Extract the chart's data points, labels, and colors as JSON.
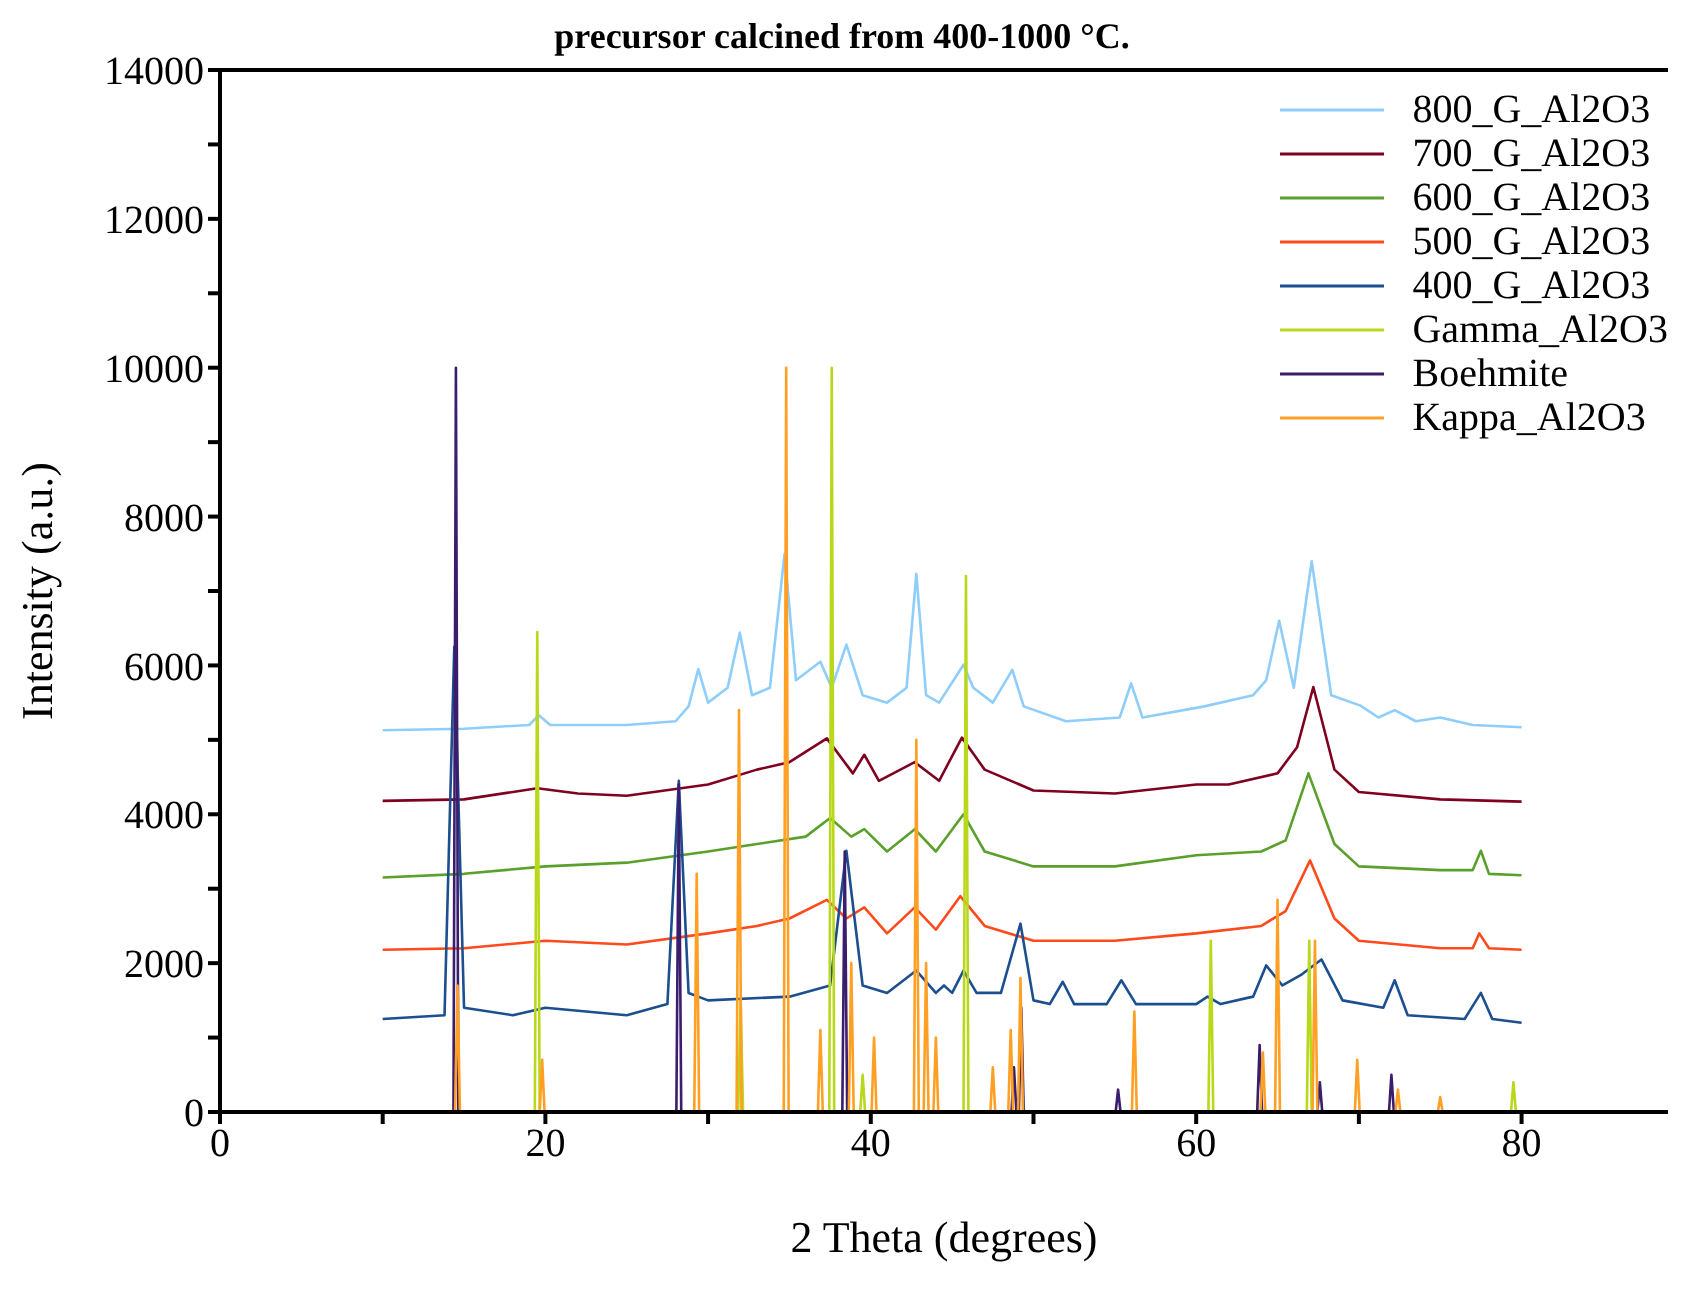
{
  "chart_data": {
    "type": "line",
    "title": "precursor calcined from 400-1000 °C.",
    "xlabel": "2 Theta (degrees)",
    "ylabel": "Intensity (a.u.)",
    "xlim": [
      0,
      89
    ],
    "xticks": [
      0,
      {
        "value": 10,
        "label": null
      },
      20,
      {
        "value": 30,
        "label": null
      },
      40,
      {
        "value": 50,
        "label": null
      },
      60,
      {
        "value": 70,
        "label": null
      },
      80
    ],
    "ylim": [
      0,
      14000
    ],
    "yticks": [
      0,
      {
        "value": 1000,
        "label": null
      },
      2000,
      {
        "value": 3000,
        "label": null
      },
      4000,
      {
        "value": 5000,
        "label": null
      },
      6000,
      {
        "value": 7000,
        "label": null
      },
      8000,
      {
        "value": 9000,
        "label": null
      },
      10000,
      {
        "value": 11000,
        "label": null
      },
      12000,
      {
        "value": 13000,
        "label": null
      },
      14000
    ],
    "grid": false,
    "legend": "top right",
    "marker": "none",
    "line_style": "solid",
    "series": [
      {
        "name": "800_G_Al2O3",
        "color": "#8fcdfb",
        "x": [
          10,
          15,
          19,
          19.6,
          20.3,
          25,
          28,
          28.8,
          29.4,
          30,
          31.2,
          31.95,
          32.7,
          33.8,
          34.7,
          35.4,
          36.9,
          37.6,
          38.5,
          39.5,
          41,
          42.2,
          42.8,
          43.4,
          44.2,
          45.7,
          46.3,
          47.5,
          48.7,
          49.4,
          52,
          55.3,
          56,
          56.7,
          60.5,
          63.5,
          64.3,
          65.1,
          66,
          67.1,
          68.3,
          70.1,
          71.2,
          72.2,
          73.5,
          75,
          77,
          80
        ],
        "values": [
          5130,
          5150,
          5200,
          5330,
          5200,
          5200,
          5250,
          5450,
          5950,
          5500,
          5700,
          6440,
          5600,
          5700,
          7500,
          5800,
          6050,
          5700,
          6280,
          5600,
          5500,
          5700,
          7230,
          5600,
          5500,
          6010,
          5700,
          5500,
          5940,
          5450,
          5250,
          5300,
          5760,
          5300,
          5450,
          5600,
          5800,
          6600,
          5700,
          7400,
          5600,
          5460,
          5300,
          5400,
          5250,
          5300,
          5200,
          5170
        ]
      },
      {
        "name": "700_G_Al2O3",
        "color": "#800020",
        "x": [
          10,
          15,
          19.5,
          22,
          25,
          30,
          33,
          35,
          37.3,
          38.9,
          39.6,
          40.5,
          42.7,
          44.2,
          45.6,
          47,
          50,
          55,
          60,
          62,
          65,
          66.2,
          67.2,
          68.5,
          70,
          75,
          80
        ],
        "values": [
          4180,
          4200,
          4350,
          4280,
          4250,
          4400,
          4600,
          4700,
          5020,
          4550,
          4800,
          4450,
          4700,
          4450,
          5030,
          4600,
          4320,
          4280,
          4400,
          4400,
          4550,
          4900,
          5710,
          4600,
          4300,
          4200,
          4170
        ]
      },
      {
        "name": "600_G_Al2O3",
        "color": "#5aa02c",
        "x": [
          10,
          15,
          20,
          25,
          30,
          33,
          36,
          37.5,
          38.8,
          39.6,
          41,
          42.7,
          44,
          45.7,
          47,
          50,
          55,
          60,
          64,
          65.5,
          66.9,
          68.5,
          70,
          75,
          77,
          77.5,
          78,
          80
        ],
        "values": [
          3150,
          3200,
          3300,
          3350,
          3500,
          3600,
          3700,
          3950,
          3700,
          3800,
          3500,
          3800,
          3500,
          4000,
          3500,
          3300,
          3300,
          3450,
          3500,
          3650,
          4550,
          3600,
          3300,
          3250,
          3250,
          3510,
          3200,
          3180
        ]
      },
      {
        "name": "500_G_Al2O3",
        "color": "#ff4a1c",
        "x": [
          10,
          15,
          20,
          25,
          30,
          33,
          35,
          37.3,
          38.5,
          39.6,
          41,
          42.7,
          44,
          45.5,
          47,
          50,
          55,
          60,
          64,
          65.5,
          67,
          68.5,
          70,
          75,
          77,
          77.4,
          78,
          80
        ],
        "values": [
          2180,
          2200,
          2300,
          2250,
          2400,
          2500,
          2600,
          2850,
          2600,
          2750,
          2400,
          2750,
          2450,
          2900,
          2500,
          2300,
          2300,
          2400,
          2500,
          2700,
          3380,
          2600,
          2300,
          2200,
          2200,
          2400,
          2200,
          2180
        ]
      },
      {
        "name": "400_G_Al2O3",
        "color": "#1c4f8f",
        "x": [
          10,
          13.8,
          14.4,
          15,
          18,
          20,
          25,
          27.5,
          28.2,
          28.8,
          30,
          35,
          37.5,
          38.5,
          39.5,
          41,
          42.8,
          44,
          44.5,
          45,
          45.7,
          46.5,
          48,
          49.2,
          50,
          51,
          51.8,
          52.5,
          54.5,
          55.4,
          56.3,
          60,
          60.7,
          61.5,
          63.5,
          64.3,
          65.3,
          66.5,
          67.7,
          69,
          71.5,
          72.2,
          73,
          76.5,
          77.5,
          78.2,
          80
        ],
        "values": [
          1250,
          1300,
          6250,
          1400,
          1300,
          1400,
          1300,
          1450,
          4450,
          1600,
          1500,
          1550,
          1700,
          3510,
          1700,
          1600,
          1900,
          1600,
          1700,
          1600,
          1900,
          1600,
          1600,
          2530,
          1500,
          1450,
          1750,
          1450,
          1450,
          1770,
          1450,
          1450,
          1550,
          1450,
          1550,
          1970,
          1700,
          1850,
          2050,
          1500,
          1400,
          1770,
          1300,
          1250,
          1600,
          1250,
          1200
        ]
      },
      {
        "name": "Gamma_Al2O3",
        "color": "#b9d81a",
        "x": [
          19.35,
          19.5,
          19.65,
          31.85,
          32,
          32.15,
          37.45,
          37.6,
          37.75,
          39.35,
          39.5,
          39.65,
          45.7,
          45.85,
          46,
          60.75,
          60.9,
          61.05,
          66.8,
          66.95,
          67.1,
          79.35,
          79.5,
          79.65
        ],
        "values": [
          0,
          6450,
          0,
          0,
          1500,
          0,
          0,
          10000,
          0,
          0,
          500,
          0,
          0,
          7200,
          0,
          0,
          2300,
          0,
          0,
          2300,
          0,
          0,
          400,
          0
        ]
      },
      {
        "name": "Boehmite",
        "color": "#3b1d6e",
        "x": [
          14.35,
          14.5,
          14.65,
          28.05,
          28.2,
          28.35,
          38.25,
          38.4,
          38.55,
          48.65,
          48.8,
          48.95,
          49.1,
          49.25,
          49.4,
          55.05,
          55.2,
          55.35,
          63.75,
          63.9,
          64.05,
          67.45,
          67.6,
          67.75,
          71.85,
          72,
          72.15
        ],
        "values": [
          0,
          10000,
          0,
          0,
          4400,
          0,
          0,
          3500,
          0,
          0,
          600,
          0,
          0,
          1400,
          0,
          0,
          300,
          0,
          0,
          900,
          0,
          0,
          400,
          0,
          0,
          500,
          0
        ]
      },
      {
        "name": "Kappa_Al2O3",
        "color": "#ffa024",
        "x": [
          14.45,
          14.6,
          14.75,
          19.65,
          19.8,
          19.95,
          29.15,
          29.3,
          29.45,
          31.75,
          31.9,
          32.05,
          34.65,
          34.8,
          34.95,
          36.75,
          36.9,
          37.05,
          38.65,
          38.8,
          38.95,
          40.05,
          40.2,
          40.35,
          42.65,
          42.8,
          42.95,
          43.25,
          43.4,
          43.55,
          43.85,
          44,
          44.15,
          47.35,
          47.5,
          47.65,
          48.45,
          48.6,
          48.75,
          49.05,
          49.2,
          49.35,
          56.05,
          56.2,
          56.35,
          63.95,
          64.1,
          64.25,
          64.85,
          65,
          65.15,
          67.15,
          67.3,
          67.45,
          69.75,
          69.9,
          70.05,
          72.25,
          72.4,
          72.55,
          74.85,
          75,
          75.15
        ],
        "values": [
          0,
          1700,
          0,
          0,
          700,
          0,
          0,
          3200,
          0,
          0,
          5400,
          0,
          0,
          10000,
          0,
          0,
          1100,
          0,
          0,
          2000,
          0,
          0,
          1000,
          0,
          0,
          5000,
          0,
          0,
          2000,
          0,
          0,
          1000,
          0,
          0,
          600,
          0,
          0,
          1100,
          0,
          0,
          1800,
          0,
          0,
          1350,
          0,
          0,
          800,
          0,
          0,
          2850,
          0,
          0,
          2300,
          0,
          0,
          700,
          0,
          0,
          300,
          0,
          0,
          200,
          0
        ]
      }
    ]
  }
}
